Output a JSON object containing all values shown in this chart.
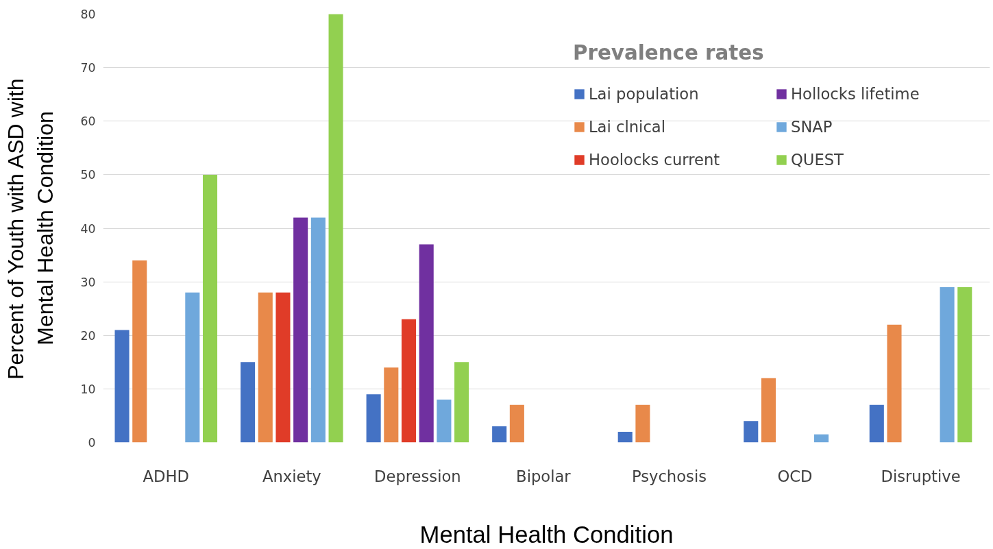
{
  "chart_data": {
    "type": "bar",
    "xlabel": "Mental Health Condition",
    "ylabel": "Percent of Youth with ASD with\nMental Health Condition",
    "legend_title": "Prevalence rates",
    "categories": [
      "ADHD",
      "Anxiety",
      "Depression",
      "Bipolar",
      "Psychosis",
      "OCD",
      "Disruptive"
    ],
    "series": [
      {
        "name": "Lai population",
        "color": "#4472c4",
        "values": [
          21,
          15,
          9,
          3,
          2,
          4,
          7
        ]
      },
      {
        "name": "Lai clnical",
        "color": "#e8894a",
        "values": [
          34,
          28,
          14,
          7,
          7,
          12,
          22
        ]
      },
      {
        "name": "Hoolocks current",
        "color": "#e03c28",
        "values": [
          null,
          28,
          23,
          null,
          null,
          null,
          null
        ]
      },
      {
        "name": "Hollocks lifetime",
        "color": "#7030a0",
        "values": [
          null,
          42,
          37,
          null,
          null,
          null,
          null
        ]
      },
      {
        "name": "SNAP",
        "color": "#6fa8dc",
        "values": [
          28,
          42,
          8,
          null,
          null,
          1.5,
          29
        ]
      },
      {
        "name": "QUEST",
        "color": "#92d050",
        "values": [
          50,
          80,
          15,
          null,
          null,
          null,
          29
        ]
      }
    ],
    "ylim": [
      0,
      80
    ],
    "yticks": [
      0,
      10,
      20,
      30,
      40,
      50,
      60,
      70,
      80
    ],
    "grid": "y",
    "legend": "top right"
  }
}
